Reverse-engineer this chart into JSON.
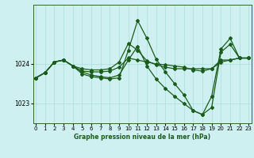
{
  "title": "Graphe pression niveau de la mer (hPa)",
  "bg_color": "#cff0f0",
  "grid_color": "#aadddd",
  "line_color": "#1a5c1a",
  "marker": "D",
  "marker_size": 2.0,
  "line_width": 0.9,
  "xlim": [
    -0.3,
    23.3
  ],
  "ylim": [
    1022.5,
    1025.5
  ],
  "yticks": [
    1023,
    1024
  ],
  "xticks": [
    0,
    1,
    2,
    3,
    4,
    5,
    6,
    7,
    8,
    9,
    10,
    11,
    12,
    13,
    14,
    15,
    16,
    17,
    18,
    19,
    20,
    21,
    22,
    23
  ],
  "series": [
    [
      1023.65,
      1023.78,
      1024.05,
      1024.1,
      1023.95,
      1023.88,
      1023.85,
      1023.85,
      1023.88,
      1024.05,
      1024.52,
      1024.35,
      1024.08,
      1023.98,
      1023.92,
      1023.88,
      1023.88,
      1023.88,
      1023.88,
      1023.88,
      1024.1,
      1024.1,
      1024.15,
      1024.15
    ],
    [
      1023.65,
      1023.78,
      1024.05,
      1024.1,
      1023.95,
      1023.8,
      1023.72,
      1023.68,
      1023.65,
      1023.72,
      1024.1,
      1024.45,
      1023.95,
      1023.62,
      1023.38,
      1023.18,
      1023.0,
      1022.82,
      1022.72,
      1022.9,
      1024.3,
      1024.5,
      1024.15,
      1024.15
    ],
    [
      1023.65,
      1023.78,
      1024.05,
      1024.1,
      1023.95,
      1023.75,
      1023.68,
      1023.65,
      1023.62,
      1023.65,
      1024.35,
      1025.1,
      1024.65,
      1024.12,
      1023.8,
      1023.5,
      1023.22,
      1022.82,
      1022.72,
      1023.18,
      1024.38,
      1024.65,
      1024.15,
      1024.15
    ],
    [
      1023.65,
      1023.78,
      1024.05,
      1024.1,
      1023.95,
      1023.82,
      1023.8,
      1023.8,
      1023.82,
      1023.92,
      1024.15,
      1024.1,
      1024.05,
      1024.0,
      1023.98,
      1023.95,
      1023.92,
      1023.85,
      1023.82,
      1023.88,
      1024.05,
      1024.1,
      1024.15,
      1024.15
    ]
  ]
}
